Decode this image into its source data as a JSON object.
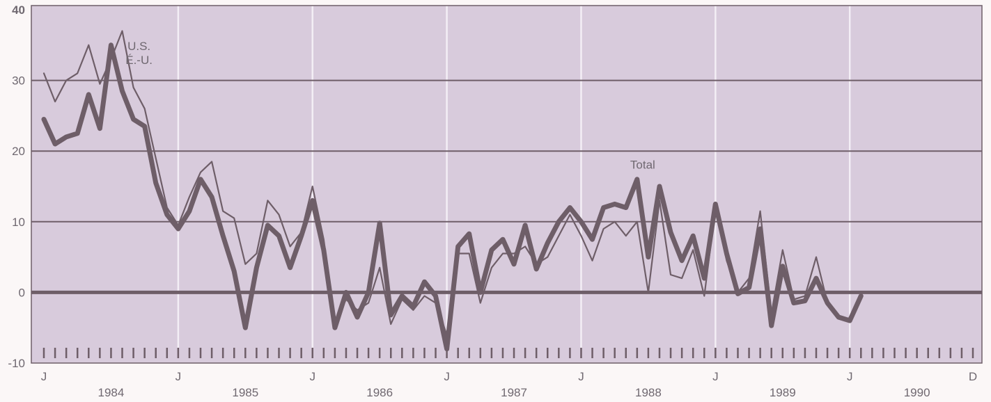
{
  "chart_data": {
    "type": "line",
    "title": "",
    "xlabel": "",
    "ylabel": "",
    "ylim": [
      -10,
      40
    ],
    "xlim": [
      0,
      83
    ],
    "y_ticks": [
      40,
      30,
      20,
      10,
      0,
      -10
    ],
    "x_month_labels": [
      {
        "label": "J",
        "x": 0
      },
      {
        "label": "J",
        "x": 12
      },
      {
        "label": "J",
        "x": 24
      },
      {
        "label": "J",
        "x": 36
      },
      {
        "label": "J",
        "x": 48
      },
      {
        "label": "J",
        "x": 60
      },
      {
        "label": "J",
        "x": 72
      },
      {
        "label": "D",
        "x": 83
      }
    ],
    "year_labels": [
      {
        "label": "1984",
        "x": 6
      },
      {
        "label": "1985",
        "x": 18
      },
      {
        "label": "1986",
        "x": 30
      },
      {
        "label": "1987",
        "x": 42
      },
      {
        "label": "1988",
        "x": 54
      },
      {
        "label": "1989",
        "x": 66
      },
      {
        "label": "1990",
        "x": 78
      }
    ],
    "grid": true,
    "colors": {
      "background": "#d8cbdc",
      "line": "#6e5e68",
      "grid": "#6e5e68",
      "label": "#6f6870"
    },
    "annotations": [
      {
        "text": "U.S.",
        "x": 8.5,
        "y": 34.3
      },
      {
        "text": "É.-U.",
        "x": 8.5,
        "y": 32.3
      },
      {
        "text": "Total",
        "x": 53.5,
        "y": 17.5
      }
    ],
    "series": [
      {
        "name": "Total",
        "values": [
          24.5,
          21,
          22,
          22.5,
          28,
          23.2,
          35,
          28.5,
          24.5,
          23.5,
          15.5,
          11,
          9,
          11.5,
          16,
          13.5,
          8,
          3,
          -5,
          3.5,
          9.5,
          8,
          3.5,
          8,
          13,
          6,
          -5,
          0,
          -3.5,
          0,
          9.8,
          -3.2,
          -0.5,
          -2,
          1.5,
          -0.5,
          -8,
          6.5,
          8.3,
          0,
          6,
          7.5,
          4,
          9.5,
          3.3,
          7,
          10,
          12,
          10,
          7.5,
          12,
          12.5,
          12,
          16,
          5,
          15,
          8.5,
          4.5,
          8,
          2,
          12.5,
          5.5,
          -0.2,
          0.7,
          9,
          -4.7,
          3.7,
          -1.5,
          -1.2,
          2,
          -1.5,
          -3.5,
          -4,
          -0.5
        ]
      },
      {
        "name": "U.S.",
        "values": [
          31,
          27,
          30,
          31,
          35,
          29.5,
          33,
          37,
          29,
          26,
          19,
          12,
          9.5,
          13.5,
          17,
          18.5,
          11.5,
          10.5,
          4,
          5.5,
          13,
          11,
          6.5,
          8.5,
          15,
          7.5,
          -4,
          -1,
          -2.5,
          -1.5,
          3.5,
          -4.5,
          -1,
          -2.5,
          -0.5,
          -1.5,
          -6,
          5.5,
          5.5,
          -1.5,
          3.5,
          5.5,
          5.5,
          6.5,
          4,
          5,
          8,
          11,
          8,
          4.5,
          9,
          10,
          8,
          10,
          0,
          13,
          2.5,
          2,
          6,
          -0.5,
          12,
          4.5,
          0,
          2,
          11.5,
          -3,
          6,
          -1,
          -0.5,
          5,
          -1.5,
          -3.5
        ]
      }
    ]
  }
}
